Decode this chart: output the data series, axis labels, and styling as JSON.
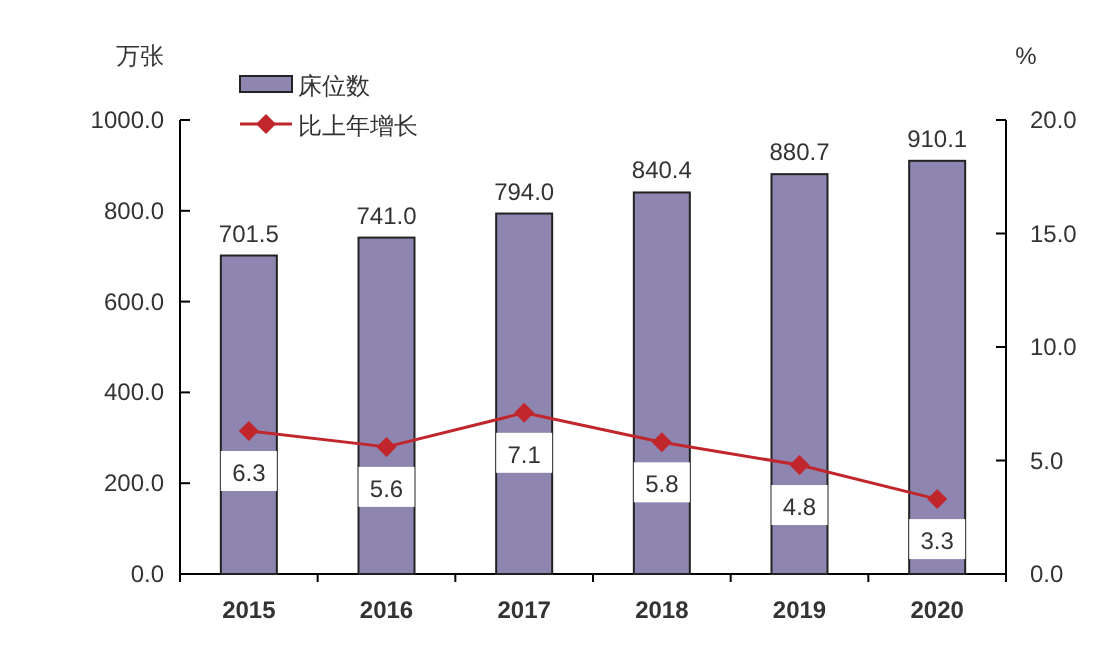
{
  "chart_data": {
    "type": "bar",
    "categories": [
      "2015",
      "2016",
      "2017",
      "2018",
      "2019",
      "2020"
    ],
    "ylabel": "万张",
    "y2label": "%",
    "ylim": [
      0,
      1000
    ],
    "yticks": [
      {
        "value": 0,
        "label": "0.0"
      },
      {
        "value": 200,
        "label": "200.0"
      },
      {
        "value": 400,
        "label": "400.0"
      },
      {
        "value": 600,
        "label": "600.0"
      },
      {
        "value": 800,
        "label": "800.0"
      },
      {
        "value": 1000,
        "label": "1000.0"
      }
    ],
    "y2lim": [
      0,
      20
    ],
    "y2ticks": [
      {
        "value": 0,
        "label": "0.0"
      },
      {
        "value": 5,
        "label": "5.0"
      },
      {
        "value": 10,
        "label": "10.0"
      },
      {
        "value": 15,
        "label": "15.0"
      },
      {
        "value": 20,
        "label": "20.0"
      }
    ],
    "series": [
      {
        "name": "床位数",
        "color": "#8e86b0",
        "values": [
          701.5,
          741.0,
          794.0,
          840.4,
          880.7,
          910.1
        ],
        "value_labels": [
          "701.5",
          "741.0",
          "794.0",
          "840.4",
          "880.7",
          "910.1"
        ]
      },
      {
        "name": "比上年增长",
        "type": "line",
        "axis": "y2",
        "color": "#c0262c",
        "marker": "diamond",
        "values": [
          6.3,
          5.6,
          7.1,
          5.8,
          4.8,
          3.3
        ],
        "value_labels": [
          "6.3",
          "5.6",
          "7.1",
          "5.8",
          "4.8",
          "3.3"
        ]
      }
    ],
    "legend": "top left",
    "grid": false
  }
}
